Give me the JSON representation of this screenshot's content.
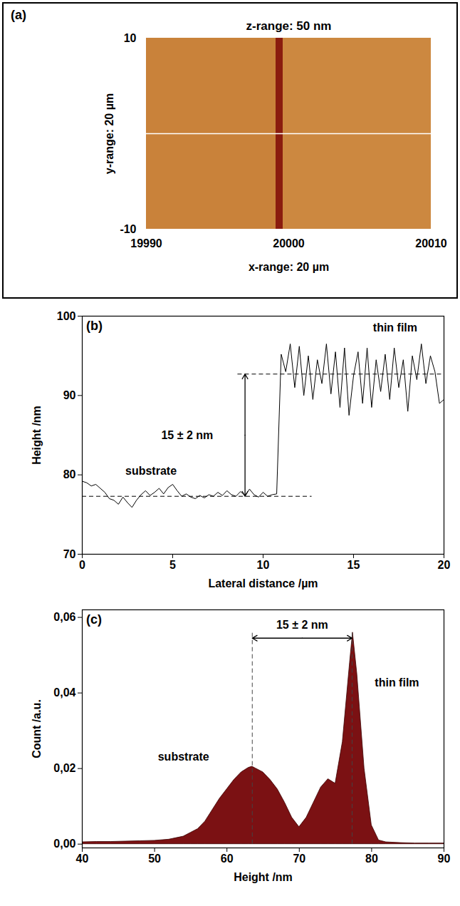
{
  "chart_data": [
    {
      "type": "image",
      "panel": "(a)",
      "title": "z-range: 50 nm",
      "xlabel": "x-range: 20 µm",
      "ylabel": "y-range: 20 µm",
      "xlim": [
        19990,
        20010
      ],
      "ylim": [
        -10,
        10
      ],
      "xticks": [
        19990,
        20000,
        20010
      ],
      "yticks": [
        -10,
        10
      ],
      "regions": [
        {
          "x1": 19990,
          "x2": 19999.1,
          "color": "#c9823a"
        },
        {
          "x1": 19999.1,
          "x2": 19999.6,
          "color": "#8a1c0e"
        },
        {
          "x1": 19999.6,
          "x2": 20010,
          "color": "#cc8840"
        }
      ],
      "profile_line": {
        "y": 0,
        "color": "#ffffff"
      }
    },
    {
      "type": "line",
      "panel": "(b)",
      "xlabel": "Lateral distance /µm",
      "ylabel": "Height /nm",
      "xlim": [
        0,
        20
      ],
      "ylim": [
        70,
        100
      ],
      "xticks": [
        0,
        5,
        10,
        15,
        20
      ],
      "yticks": [
        70,
        80,
        90,
        100
      ],
      "color": "#000000",
      "x": [
        0,
        0.25,
        0.5,
        0.75,
        1,
        1.25,
        1.5,
        1.75,
        2,
        2.25,
        2.5,
        2.75,
        3,
        3.25,
        3.5,
        3.75,
        4,
        4.25,
        4.5,
        4.75,
        5,
        5.25,
        5.5,
        5.75,
        6,
        6.25,
        6.5,
        6.75,
        7,
        7.25,
        7.5,
        7.75,
        8,
        8.25,
        8.5,
        8.75,
        9,
        9.25,
        9.5,
        9.75,
        10,
        10.25,
        10.5,
        10.75,
        11,
        11.25,
        11.5,
        11.75,
        12,
        12.25,
        12.5,
        12.75,
        13,
        13.25,
        13.5,
        13.75,
        14,
        14.25,
        14.5,
        14.75,
        15,
        15.25,
        15.5,
        15.75,
        16,
        16.25,
        16.5,
        16.75,
        17,
        17.25,
        17.5,
        17.75,
        18,
        18.25,
        18.5,
        18.75,
        19,
        19.25,
        19.5,
        19.75,
        20
      ],
      "values": [
        79.2,
        79.0,
        78.6,
        78.8,
        78.3,
        77.8,
        77.0,
        76.8,
        76.3,
        77.2,
        76.5,
        75.9,
        76.8,
        77.5,
        78.0,
        77.4,
        77.8,
        78.3,
        77.6,
        78.4,
        78.8,
        78.0,
        77.3,
        77.6,
        77.2,
        77.0,
        77.4,
        77.1,
        77.5,
        77.3,
        77.8,
        77.4,
        78.0,
        77.5,
        77.3,
        77.9,
        77.4,
        78.2,
        77.5,
        77.2,
        77.8,
        77.3,
        77.5,
        77.6,
        95.2,
        93.0,
        96.5,
        91.0,
        96.2,
        90.0,
        95.0,
        89.5,
        94.5,
        91.5,
        96.5,
        90.2,
        95.5,
        88.5,
        96.0,
        87.5,
        92.5,
        95.5,
        89.0,
        96.0,
        88.5,
        94.5,
        90.5,
        95.2,
        89.5,
        96.0,
        91.0,
        94.5,
        88.0,
        95.0,
        92.0,
        96.5,
        91.5,
        95.0,
        93.0,
        89.0,
        89.5
      ],
      "levels": [
        {
          "y": 77.3,
          "x1": 0,
          "x2": 12.7
        },
        {
          "y": 92.7,
          "x1": 8.6,
          "x2": 20
        }
      ],
      "arrow": {
        "x": 9.0,
        "y1": 77.3,
        "y2": 92.7
      },
      "annotations": [
        {
          "text": "substrate",
          "x": 3.8,
          "y": 80.5
        },
        {
          "text": "thin film",
          "x": 17.3,
          "y": 98.5
        },
        {
          "text": "15 ± 2 nm",
          "x": 5.8,
          "y": 85
        }
      ]
    },
    {
      "type": "area",
      "panel": "(c)",
      "xlabel": "Height /nm",
      "ylabel": "Count /a.u.",
      "xlim": [
        40,
        90
      ],
      "ylim": [
        -0.001,
        0.062
      ],
      "xticks": [
        40,
        50,
        60,
        70,
        80,
        90
      ],
      "yticks": [
        {
          "value": 0,
          "label": "0,00"
        },
        {
          "value": 0.02,
          "label": "0,02"
        },
        {
          "value": 0.04,
          "label": "0,04"
        },
        {
          "value": 0.06,
          "label": "0,06"
        }
      ],
      "color": "#7b1113",
      "x": [
        40,
        42,
        44,
        46,
        48,
        50,
        52,
        54,
        55,
        56,
        57,
        58,
        59,
        60,
        61,
        62,
        63,
        63.5,
        64,
        65,
        66,
        67,
        68,
        69,
        70,
        71,
        72,
        73,
        74,
        75,
        76,
        77,
        77.4,
        78,
        79,
        80,
        81,
        82,
        84,
        86,
        88,
        90
      ],
      "values": [
        0.0005,
        0.0006,
        0.0006,
        0.0007,
        0.0008,
        0.0009,
        0.0012,
        0.002,
        0.003,
        0.004,
        0.006,
        0.009,
        0.012,
        0.0145,
        0.017,
        0.019,
        0.0202,
        0.0205,
        0.02,
        0.019,
        0.017,
        0.0145,
        0.011,
        0.007,
        0.0045,
        0.007,
        0.011,
        0.015,
        0.0172,
        0.016,
        0.027,
        0.048,
        0.056,
        0.045,
        0.02,
        0.005,
        0.001,
        0.0005,
        0.0003,
        0.0002,
        0.0002,
        0.0002
      ],
      "markers": [
        {
          "x": 63.5,
          "y1": 0,
          "y2": 0.056
        },
        {
          "x": 77.3,
          "y1": 0,
          "y2": 0.056
        }
      ],
      "arrow": {
        "y": 0.0545,
        "x1": 63.5,
        "x2": 77.3
      },
      "annotations": [
        {
          "text": "substrate",
          "x": 54,
          "y": 0.023
        },
        {
          "text": "thin film",
          "x": 83.5,
          "y": 0.0427
        },
        {
          "text": "15 ± 2 nm",
          "x": 70.4,
          "y": 0.058
        }
      ]
    }
  ]
}
